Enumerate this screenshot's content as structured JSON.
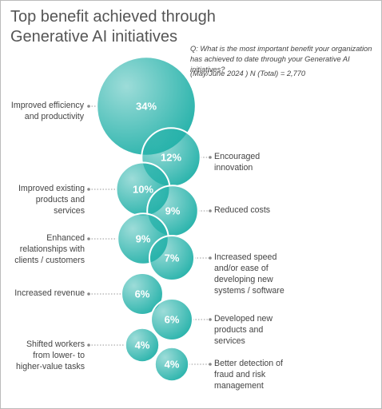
{
  "chart_data": {
    "type": "bubble",
    "title": "Top benefit achieved through Generative AI initiatives",
    "subtitle": "Q: What is the most important benefit your organization has achieved to date through your Generative AI initiatives?",
    "note": "(May/June 2024 ) N (Total) = 2,770",
    "color": "#26b2aa",
    "categories": [
      "Improved efficiency and productivity",
      "Encouraged innovation",
      "Improved existing products and services",
      "Reduced costs",
      "Enhanced relationships with clients / customers",
      "Increased speed and/or ease of developing new systems / software",
      "Increased revenue",
      "Developed new products and services",
      "Shifted workers from lower- to higher-value tasks",
      "Better detection of fraud and risk management"
    ],
    "values": [
      34,
      12,
      10,
      9,
      9,
      7,
      6,
      6,
      4,
      4
    ],
    "value_labels": [
      "34%",
      "12%",
      "10%",
      "9%",
      "9%",
      "7%",
      "6%",
      "6%",
      "4%",
      "4%"
    ]
  }
}
